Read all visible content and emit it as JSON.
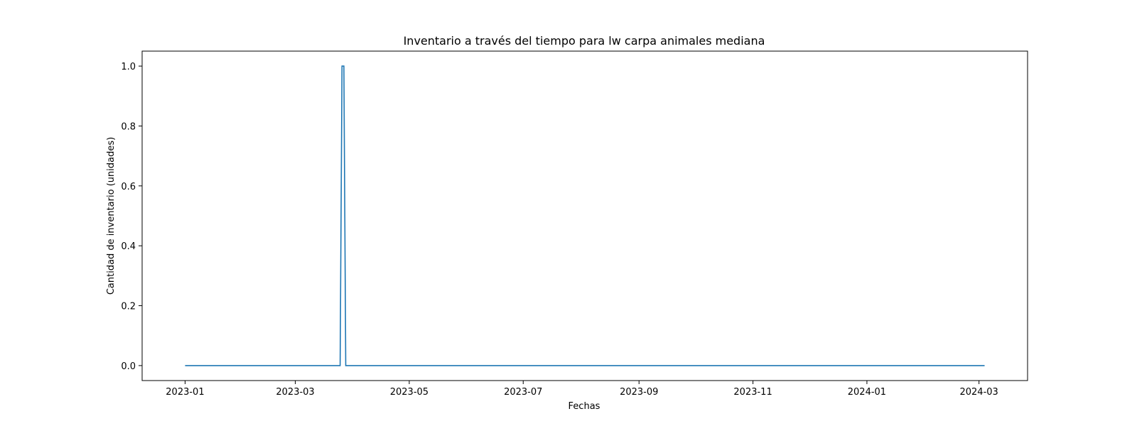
{
  "chart_data": {
    "type": "line",
    "title": "Inventario a través del tiempo para lw carpa animales mediana",
    "xlabel": "Fechas",
    "ylabel": "Cantidad de inventario (unidades)",
    "x_type": "date",
    "xlim": [
      "2022-12-09",
      "2024-03-27"
    ],
    "ylim": [
      -0.05,
      1.05
    ],
    "x_ticks": [
      "2023-01",
      "2023-03",
      "2023-05",
      "2023-07",
      "2023-09",
      "2023-11",
      "2024-01",
      "2024-03"
    ],
    "x_tick_dates": [
      "2023-01-01",
      "2023-03-01",
      "2023-05-01",
      "2023-07-01",
      "2023-09-01",
      "2023-11-01",
      "2024-01-01",
      "2024-03-01"
    ],
    "y_ticks": [
      "0.0",
      "0.2",
      "0.4",
      "0.6",
      "0.8",
      "1.0"
    ],
    "y_tick_values": [
      0.0,
      0.2,
      0.4,
      0.6,
      0.8,
      1.0
    ],
    "grid": false,
    "legend": "none",
    "line_color": "#1f77b4",
    "series": [
      {
        "points": [
          {
            "x": "2023-01-01",
            "y": 0
          },
          {
            "x": "2023-03-25",
            "y": 0
          },
          {
            "x": "2023-03-26",
            "y": 1
          },
          {
            "x": "2023-03-27",
            "y": 1
          },
          {
            "x": "2023-03-28",
            "y": 0
          },
          {
            "x": "2024-03-04",
            "y": 0
          }
        ]
      }
    ]
  }
}
